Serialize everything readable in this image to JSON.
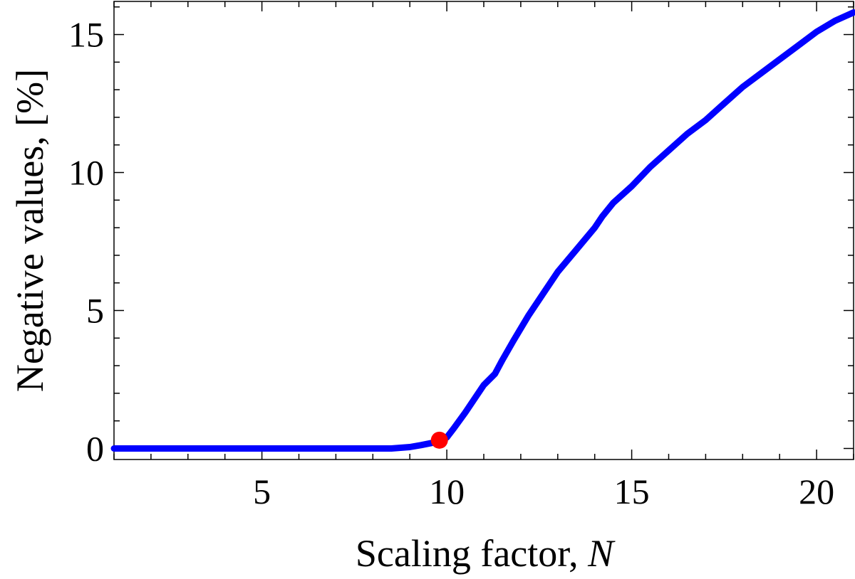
{
  "chart_data": {
    "type": "line",
    "xlabel": "Scaling factor,",
    "xlabel_var": "N",
    "ylabel": "Negative values, [%]",
    "xlim": [
      1,
      21
    ],
    "ylim": [
      -0.4,
      16.2
    ],
    "x_ticks": [
      5,
      10,
      15,
      20
    ],
    "y_ticks": [
      0,
      5,
      10,
      15
    ],
    "x_minor_step": 1,
    "y_minor_step": 1,
    "grid": false,
    "series": [
      {
        "color": "#0000ff",
        "x": [
          1,
          2,
          3,
          4,
          5,
          6,
          7,
          8,
          8.5,
          9,
          9.3,
          9.6,
          9.8,
          10,
          10.2,
          10.5,
          10.8,
          11,
          11.3,
          11.5,
          11.8,
          12.2,
          12.6,
          13,
          13.5,
          14,
          14.2,
          14.5,
          15,
          15.5,
          16,
          16.5,
          17,
          17.5,
          18,
          18.5,
          19,
          19.5,
          20,
          20.5,
          21
        ],
        "y": [
          0,
          0,
          0,
          0,
          0,
          0,
          0,
          0,
          0,
          0.05,
          0.12,
          0.2,
          0.3,
          0.4,
          0.75,
          1.3,
          1.9,
          2.3,
          2.7,
          3.2,
          3.9,
          4.8,
          5.6,
          6.4,
          7.2,
          8.0,
          8.4,
          8.9,
          9.5,
          10.2,
          10.8,
          11.4,
          11.9,
          12.5,
          13.1,
          13.6,
          14.1,
          14.6,
          15.1,
          15.5,
          15.8
        ]
      }
    ],
    "highlight_point": {
      "x": 9.8,
      "y": 0.3,
      "color": "#ff0000"
    }
  }
}
